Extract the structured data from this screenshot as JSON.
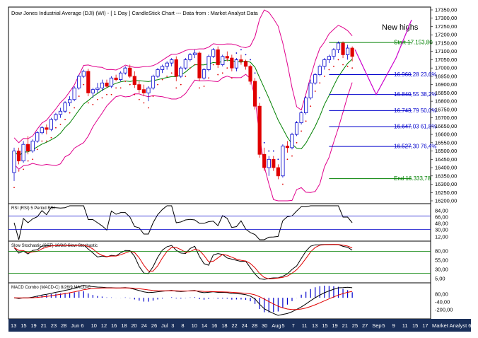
{
  "chart_data": {
    "type": "candlestick",
    "title": "Dow Jones Industrial Average (DJI) (WI) -  [ 1 Day ] CandleStick Chart --- Data from : Market Analyst Data",
    "annotation": "New highs",
    "ylim": [
      16200,
      17350
    ],
    "yticks": [
      "17350,00",
      "17300,00",
      "17250,00",
      "17200,00",
      "17150,00",
      "17100,00",
      "17050,00",
      "17000,00",
      "16950,00",
      "16900,00",
      "16850,00",
      "16800,00",
      "16750,00",
      "16700,00",
      "16650,00",
      "16600,00",
      "16550,00",
      "16500,00",
      "16450,00",
      "16400,00",
      "16350,00",
      "16300,00",
      "16250,00",
      "16200,00"
    ],
    "fib_levels": [
      {
        "label": "Start 17.153,80",
        "value": 17153.8
      },
      {
        "label": "16.960,28 23,6%",
        "value": 16960.28
      },
      {
        "label": "16.840,55 38,2%",
        "value": 16840.55
      },
      {
        "label": "16.743,79 50,0%",
        "value": 16743.79
      },
      {
        "label": "16.647,03 61,8%",
        "value": 16647.03
      },
      {
        "label": "16.527,30 76,4%",
        "value": 16527.3
      },
      {
        "label": "End 16.333,78",
        "value": 16333.78
      }
    ],
    "x_labels": [
      "13",
      "15",
      "19",
      "21",
      "23",
      "28",
      "Jun",
      "6",
      "10",
      "12",
      "16",
      "18",
      "20",
      "24",
      "26",
      "Jul",
      "3",
      "8",
      "10",
      "14",
      "16",
      "18",
      "22",
      "24",
      "28",
      "30",
      "Aug",
      "5",
      "7",
      "11",
      "13",
      "15",
      "19",
      "21",
      "25",
      "27",
      "Sep",
      "5",
      "9",
      "11",
      "15",
      "17"
    ],
    "x_labels_right": "Market Analyst 6",
    "candles": [
      [
        16370,
        16520,
        16320,
        16500
      ],
      [
        16500,
        16520,
        16420,
        16440
      ],
      [
        16440,
        16560,
        16430,
        16540
      ],
      [
        16540,
        16590,
        16480,
        16500
      ],
      [
        16500,
        16570,
        16490,
        16560
      ],
      [
        16560,
        16620,
        16550,
        16610
      ],
      [
        16610,
        16650,
        16600,
        16640
      ],
      [
        16640,
        16660,
        16600,
        16630
      ],
      [
        16630,
        16700,
        16620,
        16690
      ],
      [
        16690,
        16730,
        16680,
        16720
      ],
      [
        16720,
        16760,
        16700,
        16740
      ],
      [
        16740,
        16800,
        16730,
        16790
      ],
      [
        16790,
        16830,
        16770,
        16810
      ],
      [
        16810,
        16890,
        16800,
        16880
      ],
      [
        16880,
        16960,
        16870,
        16950
      ],
      [
        16950,
        16990,
        16940,
        16980
      ],
      [
        16980,
        16995,
        16830,
        16850
      ],
      [
        16850,
        16880,
        16820,
        16870
      ],
      [
        16870,
        16910,
        16850,
        16880
      ],
      [
        16880,
        16930,
        16860,
        16910
      ],
      [
        16910,
        16930,
        16880,
        16890
      ],
      [
        16890,
        16950,
        16880,
        16940
      ],
      [
        16940,
        16960,
        16920,
        16930
      ],
      [
        16930,
        16980,
        16920,
        16970
      ],
      [
        16970,
        17010,
        16960,
        17000
      ],
      [
        17000,
        17020,
        16940,
        16950
      ],
      [
        16950,
        16980,
        16880,
        16900
      ],
      [
        16900,
        16920,
        16850,
        16870
      ],
      [
        16870,
        16900,
        16830,
        16850
      ],
      [
        16850,
        16890,
        16800,
        16880
      ],
      [
        16880,
        16960,
        16870,
        16950
      ],
      [
        16950,
        17000,
        16940,
        16990
      ],
      [
        16990,
        17020,
        16970,
        17010
      ],
      [
        17010,
        17040,
        16990,
        17030
      ],
      [
        17030,
        17060,
        17010,
        17050
      ],
      [
        17050,
        17070,
        16920,
        16950
      ],
      [
        16950,
        17010,
        16940,
        17000
      ],
      [
        17000,
        17060,
        16990,
        17050
      ],
      [
        17050,
        17090,
        17040,
        17080
      ],
      [
        17080,
        17110,
        17060,
        17090
      ],
      [
        17090,
        17100,
        16920,
        16940
      ],
      [
        16940,
        17000,
        16930,
        16990
      ],
      [
        16990,
        17080,
        16980,
        17070
      ],
      [
        17070,
        17120,
        17060,
        17110
      ],
      [
        17110,
        17130,
        17000,
        17020
      ],
      [
        17020,
        17080,
        17010,
        17070
      ],
      [
        17070,
        17100,
        17040,
        17060
      ],
      [
        17060,
        17080,
        16980,
        17000
      ],
      [
        17000,
        17060,
        16980,
        17050
      ],
      [
        17050,
        17080,
        17020,
        17040
      ],
      [
        17040,
        17050,
        16990,
        17010
      ],
      [
        17010,
        17020,
        16900,
        16920
      ],
      [
        16920,
        16940,
        16750,
        16770
      ],
      [
        16770,
        16790,
        16460,
        16480
      ],
      [
        16480,
        16520,
        16380,
        16400
      ],
      [
        16400,
        16470,
        16350,
        16450
      ],
      [
        16450,
        16470,
        16380,
        16400
      ],
      [
        16400,
        16420,
        16330,
        16350
      ],
      [
        16350,
        16540,
        16340,
        16530
      ],
      [
        16530,
        16560,
        16490,
        16520
      ],
      [
        16520,
        16610,
        16510,
        16600
      ],
      [
        16600,
        16680,
        16590,
        16670
      ],
      [
        16670,
        16740,
        16660,
        16730
      ],
      [
        16730,
        16830,
        16720,
        16820
      ],
      [
        16820,
        16930,
        16810,
        16910
      ],
      [
        16910,
        16970,
        16900,
        16960
      ],
      [
        16960,
        17020,
        16950,
        17010
      ],
      [
        17010,
        17060,
        16990,
        17050
      ],
      [
        17050,
        17080,
        17030,
        17070
      ],
      [
        17070,
        17120,
        17050,
        17110
      ],
      [
        17110,
        17160,
        17090,
        17150
      ],
      [
        17150,
        17160,
        17060,
        17080
      ],
      [
        17080,
        17140,
        17050,
        17120
      ],
      [
        17120,
        17130,
        17040,
        17070
      ]
    ],
    "panels": [
      {
        "name": "RSI (RSI) 5 Period RSI",
        "ticks": [
          "84,00",
          "66,00",
          "48,00",
          "30,00",
          "12,00"
        ],
        "ylim": [
          0,
          100
        ]
      },
      {
        "name": "Slow Stochastic (SST) 10/3/3 Slow Stochastic",
        "ticks": [
          "80,00",
          "55,00",
          "30,00",
          "5,00"
        ],
        "ylim": [
          0,
          100
        ]
      },
      {
        "name": "MACD Combo (MACD-C) 8/26/9 MACD-C",
        "ticks": [
          "80,00",
          "-40,00",
          "-200,00"
        ],
        "ylim": [
          -260,
          160
        ]
      }
    ],
    "colors": {
      "bull": "#0000cc",
      "bear": "#e00000",
      "bollinger": "#e0008c",
      "ma": "#008000",
      "fib_green": "#008000",
      "fib_blue": "#0000cc",
      "projection": "#cc00cc",
      "line_black": "#000000",
      "line_red": "#e00000",
      "date_bar": "#1a2f5a"
    }
  }
}
